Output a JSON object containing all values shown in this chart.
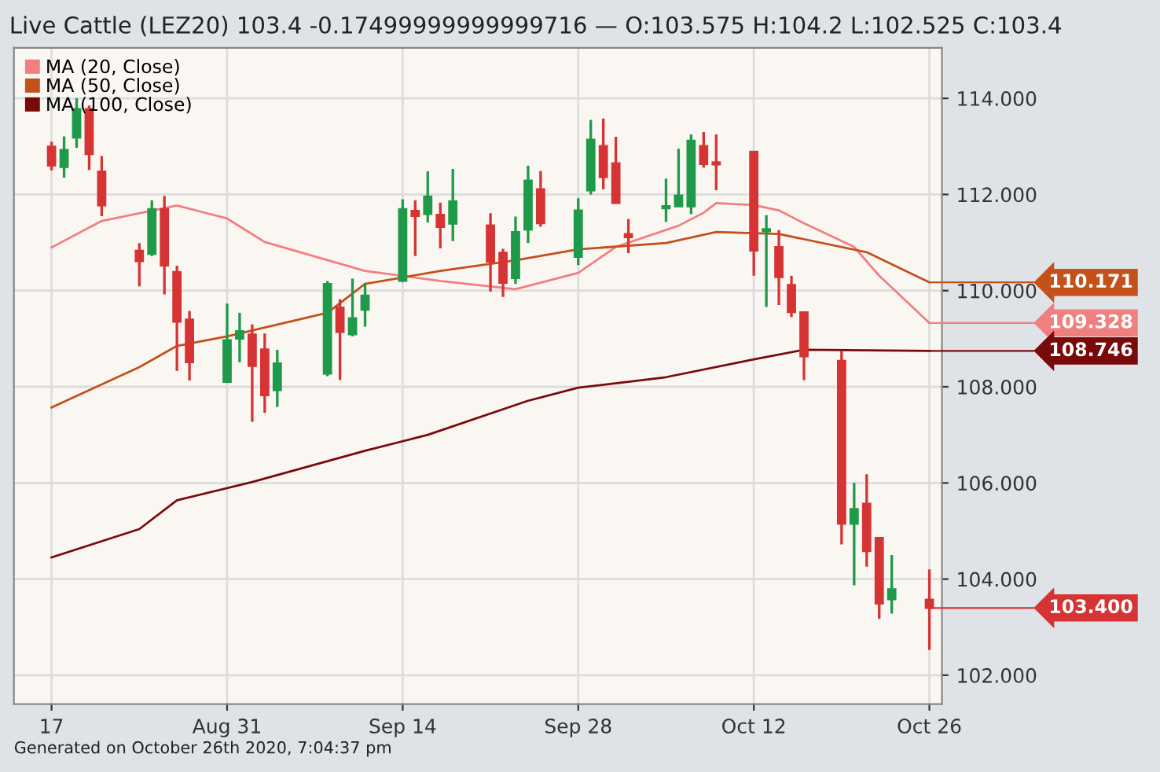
{
  "chart_data": {
    "type": "candlestick",
    "title": "Live Cattle (LEZ20) 103.4 -0.17499999999999716 — O:103.575 H:104.2 L:102.525 C:103.4",
    "x": [
      "2020-08-17",
      "2020-08-18",
      "2020-08-19",
      "2020-08-20",
      "2020-08-21",
      "2020-08-24",
      "2020-08-25",
      "2020-08-26",
      "2020-08-27",
      "2020-08-28",
      "2020-08-31",
      "2020-09-01",
      "2020-09-02",
      "2020-09-03",
      "2020-09-04",
      "2020-09-08",
      "2020-09-09",
      "2020-09-10",
      "2020-09-11",
      "2020-09-14",
      "2020-09-15",
      "2020-09-16",
      "2020-09-17",
      "2020-09-18",
      "2020-09-21",
      "2020-09-22",
      "2020-09-23",
      "2020-09-24",
      "2020-09-25",
      "2020-09-28",
      "2020-09-29",
      "2020-09-30",
      "2020-10-01",
      "2020-10-02",
      "2020-10-05",
      "2020-10-06",
      "2020-10-07",
      "2020-10-08",
      "2020-10-09",
      "2020-10-12",
      "2020-10-13",
      "2020-10-14",
      "2020-10-15",
      "2020-10-16",
      "2020-10-19",
      "2020-10-20",
      "2020-10-21",
      "2020-10-22",
      "2020-10-23",
      "2020-10-26"
    ],
    "ohlc": [
      [
        113.0,
        113.1,
        112.5,
        112.6
      ],
      [
        112.57,
        113.21,
        112.35,
        112.93
      ],
      [
        113.18,
        114.0,
        112.97,
        113.78
      ],
      [
        113.78,
        113.85,
        112.51,
        112.84
      ],
      [
        112.48,
        112.8,
        111.55,
        111.77
      ],
      [
        110.83,
        110.99,
        110.09,
        110.61
      ],
      [
        110.76,
        111.88,
        110.72,
        111.7
      ],
      [
        111.7,
        111.97,
        109.92,
        110.52
      ],
      [
        110.39,
        110.52,
        108.33,
        109.35
      ],
      [
        109.4,
        109.58,
        108.13,
        108.51
      ],
      [
        108.1,
        109.73,
        108.08,
        108.97
      ],
      [
        109.0,
        109.54,
        108.51,
        109.16
      ],
      [
        109.09,
        109.3,
        107.27,
        108.43
      ],
      [
        108.78,
        109.11,
        107.46,
        107.82
      ],
      [
        107.93,
        108.77,
        107.58,
        108.49
      ],
      [
        108.27,
        110.2,
        108.22,
        110.14
      ],
      [
        109.65,
        109.82,
        108.14,
        109.14
      ],
      [
        109.09,
        110.25,
        109.05,
        109.43
      ],
      [
        109.6,
        110.16,
        109.25,
        109.9
      ],
      [
        110.2,
        111.9,
        110.18,
        111.7
      ],
      [
        111.66,
        111.88,
        110.72,
        111.55
      ],
      [
        111.59,
        112.48,
        111.42,
        111.96
      ],
      [
        111.58,
        111.83,
        110.88,
        111.32
      ],
      [
        111.39,
        112.53,
        111.03,
        111.86
      ],
      [
        111.36,
        111.61,
        109.98,
        110.6
      ],
      [
        110.79,
        110.87,
        109.87,
        110.16
      ],
      [
        110.26,
        111.54,
        110.14,
        111.22
      ],
      [
        111.27,
        112.6,
        110.99,
        112.29
      ],
      [
        112.11,
        112.49,
        111.33,
        111.4
      ],
      [
        110.7,
        111.92,
        110.53,
        111.67
      ],
      [
        112.08,
        113.55,
        112.0,
        113.14
      ],
      [
        113.01,
        113.58,
        112.11,
        112.36
      ],
      [
        112.65,
        113.2,
        111.82,
        111.82
      ],
      [
        111.18,
        111.49,
        110.78,
        111.11
      ],
      [
        111.71,
        112.33,
        111.43,
        111.76
      ],
      [
        111.75,
        112.95,
        111.75,
        111.98
      ],
      [
        111.75,
        113.25,
        111.59,
        113.12
      ],
      [
        113.01,
        113.3,
        112.56,
        112.63
      ],
      [
        112.67,
        113.25,
        112.09,
        112.62
      ],
      [
        112.89,
        112.9,
        110.31,
        110.83
      ],
      [
        111.23,
        111.57,
        109.66,
        111.28
      ],
      [
        110.91,
        111.26,
        109.7,
        110.28
      ],
      [
        110.12,
        110.31,
        109.45,
        109.55
      ],
      [
        109.55,
        109.55,
        108.14,
        108.63
      ],
      [
        108.54,
        108.75,
        104.72,
        105.15
      ],
      [
        105.15,
        106.0,
        103.87,
        105.46
      ],
      [
        105.57,
        106.18,
        104.26,
        104.58
      ],
      [
        104.86,
        104.86,
        103.17,
        103.49
      ],
      [
        103.58,
        104.5,
        103.28,
        103.79
      ],
      [
        103.575,
        104.2,
        102.525,
        103.4
      ]
    ],
    "colors": [
      "#d63434",
      "#1f9a4a",
      "#1f9a4a",
      "#d63434",
      "#d63434",
      "#d63434",
      "#1f9a4a",
      "#d63434",
      "#d63434",
      "#d63434",
      "#1f9a4a",
      "#1f9a4a",
      "#d63434",
      "#d63434",
      "#1f9a4a",
      "#1f9a4a",
      "#d63434",
      "#1f9a4a",
      "#1f9a4a",
      "#1f9a4a",
      "#d63434",
      "#1f9a4a",
      "#d63434",
      "#1f9a4a",
      "#d63434",
      "#d63434",
      "#1f9a4a",
      "#1f9a4a",
      "#d63434",
      "#1f9a4a",
      "#1f9a4a",
      "#d63434",
      "#d63434",
      "#d63434",
      "#1f9a4a",
      "#1f9a4a",
      "#1f9a4a",
      "#d63434",
      "#d63434",
      "#d63434",
      "#1f9a4a",
      "#d63434",
      "#d63434",
      "#d63434",
      "#d63434",
      "#1f9a4a",
      "#d63434",
      "#d63434",
      "#1f9a4a",
      "#d63434"
    ],
    "series": [
      {
        "name": "MA (20, Close)",
        "type": "line",
        "color": "#f08080",
        "x": [
          "2020-08-17",
          "2020-08-21",
          "2020-08-27",
          "2020-08-31",
          "2020-09-03",
          "2020-09-11",
          "2020-09-17",
          "2020-09-23",
          "2020-09-28",
          "2020-10-01",
          "2020-10-06",
          "2020-10-08",
          "2020-10-09",
          "2020-10-12",
          "2020-10-14",
          "2020-10-16",
          "2020-10-20",
          "2020-10-22",
          "2020-10-26"
        ],
        "values": [
          110.9,
          111.45,
          111.77,
          111.5,
          111.01,
          110.41,
          110.2,
          110.03,
          110.37,
          110.91,
          111.35,
          111.62,
          111.82,
          111.78,
          111.67,
          111.4,
          110.91,
          110.31,
          109.328
        ]
      },
      {
        "name": "MA (50, Close)",
        "type": "line",
        "color": "#c4501a",
        "x": [
          "2020-08-17",
          "2020-08-24",
          "2020-08-27",
          "2020-08-31",
          "2020-09-08",
          "2020-09-11",
          "2020-09-17",
          "2020-09-23",
          "2020-09-28",
          "2020-10-05",
          "2020-10-09",
          "2020-10-14",
          "2020-10-16",
          "2020-10-21",
          "2020-10-26"
        ],
        "values": [
          107.57,
          108.41,
          108.85,
          109.05,
          109.54,
          110.14,
          110.41,
          110.63,
          110.86,
          110.99,
          111.22,
          111.18,
          111.07,
          110.8,
          110.171
        ]
      },
      {
        "name": "MA (100, Close)",
        "type": "line",
        "color": "#7a0a0a",
        "x": [
          "2020-08-17",
          "2020-08-24",
          "2020-08-27",
          "2020-09-02",
          "2020-09-11",
          "2020-09-16",
          "2020-09-24",
          "2020-09-28",
          "2020-10-05",
          "2020-10-12",
          "2020-10-16",
          "2020-10-26"
        ],
        "values": [
          104.45,
          105.04,
          105.64,
          106.02,
          106.67,
          107.0,
          107.71,
          107.98,
          108.2,
          108.57,
          108.77,
          108.746
        ]
      }
    ],
    "xlim": [
      "2020-08-14",
      "2020-10-27"
    ],
    "xticks": [
      {
        "value": "2020-08-17",
        "label": "17"
      },
      {
        "value": "2020-08-31",
        "label": "Aug 31"
      },
      {
        "value": "2020-09-14",
        "label": "Sep 14"
      },
      {
        "value": "2020-09-28",
        "label": "Sep 28"
      },
      {
        "value": "2020-10-12",
        "label": "Oct 12"
      },
      {
        "value": "2020-10-26",
        "label": "Oct 26"
      }
    ],
    "ylim": [
      101.4,
      115.05
    ],
    "yticks": [
      {
        "value": 102,
        "label": "102.000"
      },
      {
        "value": 104,
        "label": "104.000"
      },
      {
        "value": 106,
        "label": "106.000"
      },
      {
        "value": 108,
        "label": "108.000"
      },
      {
        "value": 110,
        "label": "110.000"
      },
      {
        "value": 112,
        "label": "112.000"
      },
      {
        "value": 114,
        "label": "114.000"
      }
    ],
    "grid": true,
    "legend": "top left",
    "annotations": [
      {
        "text": "110.171",
        "x": "2020-10-26",
        "y": 110.171
      },
      {
        "text": "109.328",
        "x": "2020-10-26",
        "y": 109.328
      },
      {
        "text": "108.746",
        "x": "2020-10-26",
        "y": 108.746
      },
      {
        "text": "103.400",
        "x": "2020-10-26",
        "y": 103.4
      },
      "Generated on October 26th 2020, 7:04:37 pm"
    ]
  }
}
